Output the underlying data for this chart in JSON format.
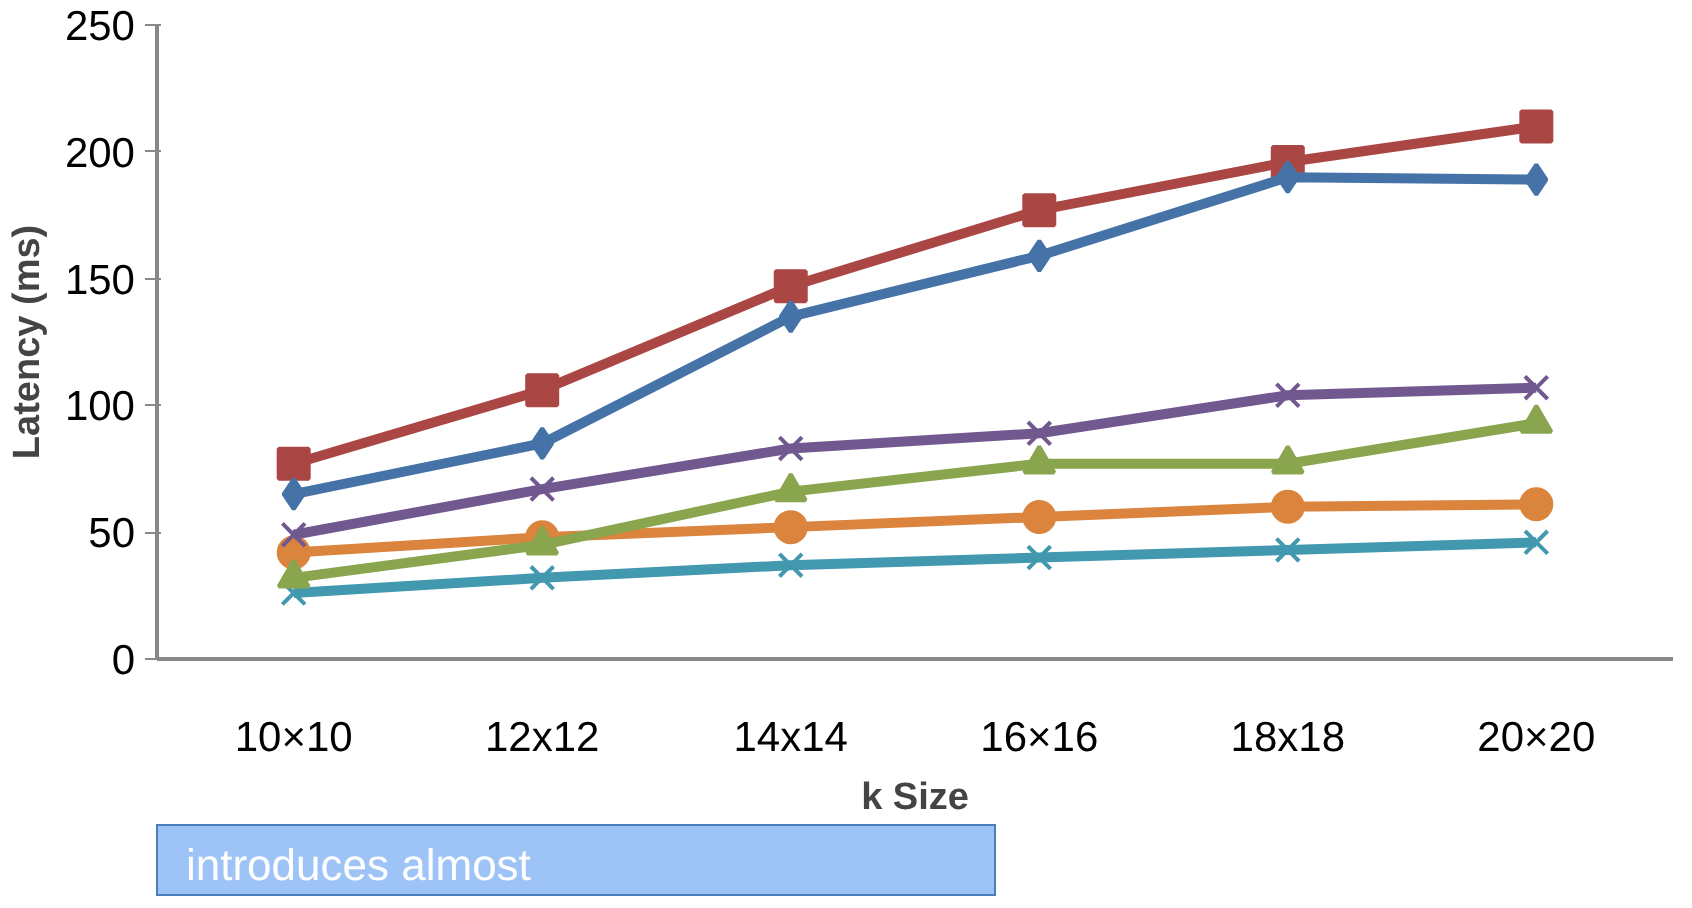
{
  "chart_data": {
    "type": "line",
    "xlabel": "k Size",
    "ylabel": "Latency (ms)",
    "categories": [
      "10×10",
      "12x12",
      "14x14",
      "16×16",
      "18x18",
      "20×20"
    ],
    "series": [
      {
        "color": "#4572a7",
        "marker": "diamond",
        "values": [
          65,
          85,
          135,
          159,
          190,
          189
        ]
      },
      {
        "color": "#aa4643",
        "marker": "square",
        "values": [
          77,
          106,
          147,
          177,
          196,
          210
        ]
      },
      {
        "color": "#71588f",
        "marker": "cross",
        "values": [
          49,
          67,
          83,
          89,
          104,
          107
        ]
      },
      {
        "color": "#89a54e",
        "marker": "triangle",
        "values": [
          32,
          45,
          66,
          77,
          77,
          93
        ]
      },
      {
        "color": "#db843d",
        "marker": "circle",
        "values": [
          42,
          48,
          52,
          56,
          60,
          61
        ]
      },
      {
        "color": "#4198af",
        "marker": "cross",
        "values": [
          26,
          32,
          37,
          40,
          43,
          46
        ]
      }
    ],
    "ylim": [
      0,
      250
    ],
    "yticks": [
      0,
      50,
      100,
      150,
      200,
      250
    ],
    "grid": false,
    "annotations": [
      "introduces almost"
    ]
  }
}
